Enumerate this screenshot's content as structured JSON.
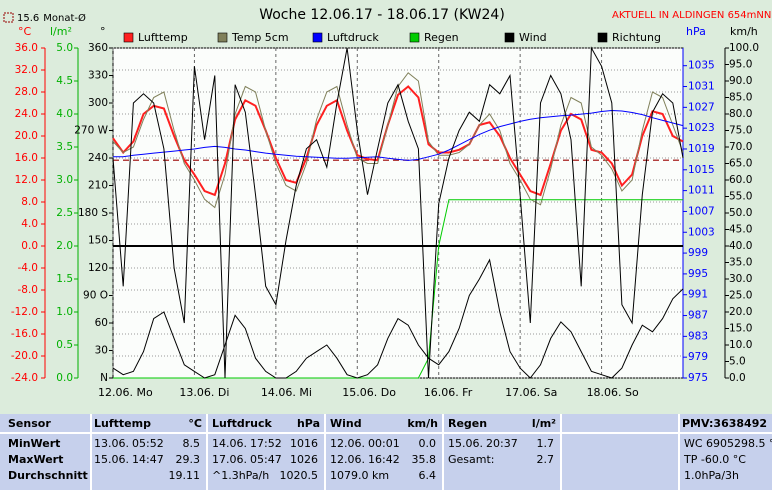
{
  "chart_data": {
    "type": "line",
    "title": "Woche 12.06.17 - 18.06.17 (KW24)",
    "subtitle": "AKTUELL IN ALDINGEN 654mNN",
    "x": [
      0,
      3,
      6,
      9,
      12,
      15,
      18,
      21,
      24,
      27,
      30,
      33,
      36,
      39,
      42,
      45,
      48,
      51,
      54,
      57,
      60,
      63,
      66,
      69,
      72,
      75,
      78,
      81,
      84,
      87,
      90,
      93,
      96,
      99,
      102,
      105,
      108,
      111,
      114,
      117,
      120,
      123,
      126,
      129,
      132,
      135,
      138,
      141,
      144,
      147,
      150,
      153,
      156,
      159,
      162,
      165,
      168
    ],
    "xlim": [
      0,
      168
    ],
    "xticks": [
      {
        "value": 0,
        "label": "12.06. Mo"
      },
      {
        "value": 24,
        "label": "13.06. Di"
      },
      {
        "value": 48,
        "label": "14.06. Mi"
      },
      {
        "value": 72,
        "label": "15.06. Do"
      },
      {
        "value": 96,
        "label": "16.06. Fr"
      },
      {
        "value": 120,
        "label": "17.06. Sa"
      },
      {
        "value": 144,
        "label": "18.06. So"
      }
    ],
    "ylabel": "°C",
    "ylim": [
      -24,
      36
    ],
    "yticks": [
      {
        "value": -24,
        "label": "-24.0"
      },
      {
        "value": -20,
        "label": "-20.0"
      },
      {
        "value": -16,
        "label": "-16.0"
      },
      {
        "value": -12,
        "label": "-12.0"
      },
      {
        "value": -8,
        "label": "-8.0"
      },
      {
        "value": -4,
        "label": "-4.0"
      },
      {
        "value": 0,
        "label": "0.0"
      },
      {
        "value": 4,
        "label": "4.0"
      },
      {
        "value": 8,
        "label": "8.0"
      },
      {
        "value": 12,
        "label": "12.0"
      },
      {
        "value": 16,
        "label": "16.0"
      },
      {
        "value": 20,
        "label": "20.0"
      },
      {
        "value": 24,
        "label": "24.0"
      },
      {
        "value": 28,
        "label": "28.0"
      },
      {
        "value": 32,
        "label": "32.0"
      },
      {
        "value": 36,
        "label": "36.0"
      }
    ],
    "y2label": "hPa",
    "y2lim": [
      975,
      1038.4
    ],
    "y2ticks": [
      975,
      979,
      983,
      987,
      991,
      995,
      999,
      1003,
      1007,
      1011,
      1015,
      1019,
      1023,
      1027,
      1031,
      1035
    ],
    "y3label": "l/m²",
    "y3lim": [
      0,
      5
    ],
    "y3ticks": [
      {
        "value": 0,
        "label": "0.0"
      },
      {
        "value": 0.5,
        "label": "0.5"
      },
      {
        "value": 1,
        "label": "1.0"
      },
      {
        "value": 1.5,
        "label": "1.5"
      },
      {
        "value": 2,
        "label": "2.0"
      },
      {
        "value": 2.5,
        "label": "2.5"
      },
      {
        "value": 3,
        "label": "3.0"
      },
      {
        "value": 3.5,
        "label": "3.5"
      },
      {
        "value": 4,
        "label": "4.0"
      },
      {
        "value": 4.5,
        "label": "4.5"
      },
      {
        "value": 5,
        "label": "5.0"
      }
    ],
    "y4label": "°",
    "y4lim": [
      0,
      360
    ],
    "y4ticks": [
      {
        "value": 0,
        "label": "N"
      },
      30,
      60,
      {
        "value": 90,
        "label": "90 O"
      },
      120,
      150,
      {
        "value": 180,
        "label": "180 S"
      },
      210,
      240,
      {
        "value": 270,
        "label": "270 W"
      },
      300,
      330,
      360
    ],
    "y5label": "km/h",
    "y5lim": [
      0,
      100
    ],
    "y5ticks": [
      {
        "value": 0,
        "label": "0.0"
      },
      {
        "value": 5,
        "label": "5.0"
      },
      {
        "value": 10,
        "label": "10.0"
      },
      {
        "value": 15,
        "label": "15.0"
      },
      {
        "value": 20,
        "label": "20.0"
      },
      {
        "value": 25,
        "label": "25.0"
      },
      {
        "value": 30,
        "label": "30.0"
      },
      {
        "value": 35,
        "label": "35.0"
      },
      {
        "value": 40,
        "label": "40.0"
      },
      {
        "value": 45,
        "label": "45.0"
      },
      {
        "value": 50,
        "label": "50.0"
      },
      {
        "value": 55,
        "label": "55.0"
      },
      {
        "value": 60,
        "label": "60.0"
      },
      {
        "value": 65,
        "label": "65.0"
      },
      {
        "value": 70,
        "label": "70.0"
      },
      {
        "value": 75,
        "label": "75.0"
      },
      {
        "value": 80,
        "label": "80.0"
      },
      {
        "value": 85,
        "label": "85.0"
      },
      {
        "value": 90,
        "label": "90.0"
      },
      {
        "value": 95,
        "label": "95.0"
      },
      {
        "value": 100,
        "label": "100.0"
      }
    ],
    "axis_colors": {
      "y": "#ff0000",
      "y3": "#00b000",
      "y4": "#000000",
      "y2": "#0000ff",
      "y5": "#000000"
    },
    "grid": true,
    "ref_lines": [
      {
        "value": 0,
        "color": "#000000"
      },
      {
        "value": 15.6,
        "label": "Monat-Ø",
        "color": "#990000"
      }
    ],
    "series": [
      {
        "name": "Lufttemp",
        "color": "#ff2020",
        "axis": "y",
        "values": [
          19.6,
          17,
          19,
          24,
          25.5,
          25,
          20,
          15.6,
          13,
          10,
          9.3,
          15,
          23,
          26.5,
          25.5,
          21,
          16,
          12,
          11.5,
          16,
          22,
          25.5,
          26.5,
          21,
          16.5,
          15.8,
          15.6,
          22,
          27.5,
          29,
          27,
          18.5,
          17,
          17,
          17.5,
          18.5,
          22,
          22.5,
          20,
          16,
          13,
          10,
          9.3,
          15,
          21,
          24,
          23,
          17.5,
          17,
          15,
          11,
          13,
          20,
          24.5,
          24,
          20,
          19
        ]
      },
      {
        "name": "Temp 5cm",
        "color": "#80805a",
        "axis": "y",
        "values": [
          19,
          17,
          18,
          23,
          27,
          28,
          21,
          15,
          12,
          8.5,
          7,
          13,
          24,
          29,
          28,
          21,
          15,
          11,
          10,
          15,
          23,
          28,
          29,
          22,
          16,
          15,
          15,
          22,
          29,
          31.5,
          30,
          19,
          16.5,
          16.5,
          17,
          18.5,
          22,
          24,
          21,
          15,
          12,
          8.5,
          7.5,
          14,
          22,
          27,
          26,
          18,
          16.5,
          14,
          10,
          12,
          21,
          28,
          27,
          22,
          17
        ]
      },
      {
        "name": "Luftdruck",
        "color": "#0000ff",
        "axis": "y2",
        "values": [
          1017.5,
          1017.5,
          1017.8,
          1018,
          1018.2,
          1018.4,
          1018.6,
          1018.8,
          1019,
          1019.3,
          1019.5,
          1019.3,
          1019,
          1018.8,
          1018.5,
          1018.2,
          1018,
          1017.8,
          1017.6,
          1017.5,
          1017.4,
          1017.3,
          1017.2,
          1017.2,
          1017.3,
          1017.4,
          1017.5,
          1017.2,
          1017,
          1016.8,
          1017,
          1017.5,
          1018,
          1018.8,
          1019.8,
          1020.8,
          1021.8,
          1022.6,
          1023.3,
          1023.8,
          1024.3,
          1024.7,
          1025,
          1025.2,
          1025.4,
          1025.5,
          1025.7,
          1025.9,
          1026.2,
          1026.4,
          1026.3,
          1026,
          1025.6,
          1025,
          1024.5,
          1024,
          1023.5
        ]
      },
      {
        "name": "Regen",
        "color": "#00cc00",
        "axis": "y3",
        "values": [
          0,
          0,
          0,
          0,
          0,
          0,
          0,
          0,
          0,
          0,
          0,
          0,
          0,
          0,
          0,
          0,
          0,
          0,
          0,
          0,
          0,
          0,
          0,
          0,
          0,
          0,
          0,
          0,
          0,
          0,
          0,
          0.3,
          2.0,
          2.7,
          2.7,
          2.7,
          2.7,
          2.7,
          2.7,
          2.7,
          2.7,
          2.7,
          2.7,
          2.7,
          2.7,
          2.7,
          2.7,
          2.7,
          2.7,
          2.7,
          2.7,
          2.7,
          2.7,
          2.7,
          2.7,
          2.7,
          2.7
        ]
      },
      {
        "name": "Wind",
        "color": "#000000",
        "axis": "y5",
        "values": [
          3,
          1,
          2,
          8,
          18,
          20,
          12,
          4,
          2,
          0,
          1,
          10,
          19,
          15,
          6,
          2,
          0,
          0,
          2,
          6,
          8,
          10,
          6,
          1,
          0,
          1,
          4,
          12,
          18,
          16,
          10,
          6,
          4,
          8,
          15,
          25,
          30,
          35.8,
          20,
          8,
          3,
          0,
          4,
          12,
          17,
          14,
          8,
          2,
          1,
          0,
          3,
          10,
          16,
          14,
          18,
          24,
          27
        ]
      },
      {
        "name": "Richtung",
        "color": "#000000",
        "axis": "y4",
        "values": [
          240,
          100,
          300,
          310,
          300,
          250,
          120,
          60,
          340,
          260,
          330,
          0,
          320,
          290,
          200,
          100,
          80,
          150,
          210,
          250,
          260,
          230,
          300,
          360,
          270,
          200,
          250,
          300,
          320,
          280,
          250,
          0,
          190,
          240,
          270,
          290,
          280,
          320,
          310,
          330,
          200,
          60,
          300,
          330,
          310,
          260,
          100,
          360,
          340,
          300,
          80,
          60,
          200,
          290,
          310,
          300,
          240
        ]
      }
    ]
  },
  "table": {
    "header": {
      "sensor": "Sensor",
      "lufttemp": [
        "Lufttemp",
        "°C"
      ],
      "luftdruck": [
        "Luftdruck",
        "hPa"
      ],
      "wind": [
        "Wind",
        "km/h"
      ],
      "regen": [
        "Regen",
        "l/m²"
      ],
      "extra": "PMV:3638492"
    },
    "rows": [
      {
        "label": "MinWert",
        "lufttemp": [
          "13.06.",
          "05:52",
          "8.5"
        ],
        "luftdruck": [
          "14.06.",
          "17:52",
          "1016"
        ],
        "wind": [
          "12.06.",
          "00:01",
          "0.0"
        ],
        "regen": [
          "15.06.",
          "20:37",
          "1.7"
        ],
        "extra": "WC 6905298.5 °"
      },
      {
        "label": "MaxWert",
        "lufttemp": [
          "15.06.",
          "14:47",
          "29.3"
        ],
        "luftdruck": [
          "17.06.",
          "05:47",
          "1026"
        ],
        "wind": [
          "12.06.",
          "16:42",
          "35.8"
        ],
        "regen": [
          "Gesamt:",
          "2.7"
        ],
        "extra": "TP -60.0 °C"
      },
      {
        "label": "Durchschnitt",
        "lufttemp": [
          "19.11"
        ],
        "luftdruck": [
          "^1.3hPa/h",
          "1020.5"
        ],
        "wind": [
          "1079.0 km",
          "6.4"
        ],
        "extra": "1.0hPa/3h"
      }
    ]
  }
}
